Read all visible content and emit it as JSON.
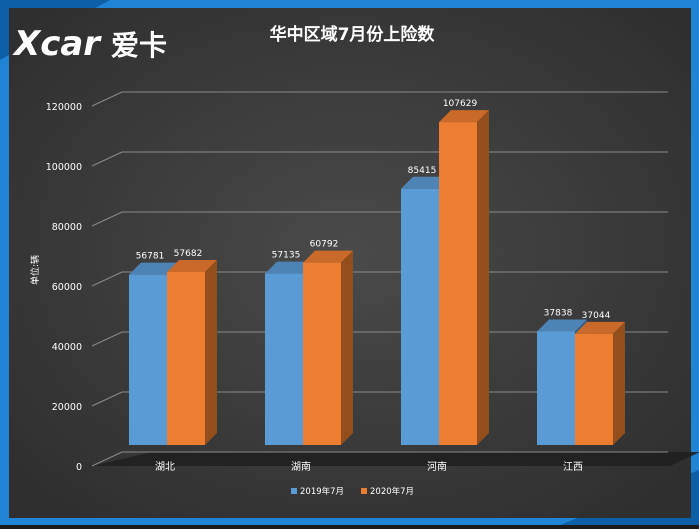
{
  "brand": {
    "logo_text": "Xcar",
    "logo_cn": "爱卡"
  },
  "colors": {
    "accent_blue": "#1f84d6",
    "series_2019": "#5b9bd5",
    "series_2020": "#ed7d31",
    "panel": "#3e3e3e"
  },
  "chart_data": {
    "type": "bar",
    "title": "华中区域7月份上险数",
    "ylabel": "单位:辆",
    "xlabel": "",
    "categories": [
      "湖北",
      "湖南",
      "河南",
      "江西"
    ],
    "series": [
      {
        "name": "2019年7月",
        "values": [
          56781,
          57135,
          85415,
          37838
        ]
      },
      {
        "name": "2020年7月",
        "values": [
          57682,
          60792,
          107629,
          37044
        ]
      }
    ],
    "ylim": [
      0,
      120000
    ],
    "yticks": [
      "0",
      "20000",
      "40000",
      "60000",
      "80000",
      "100000",
      "120000"
    ],
    "data_labels": [
      [
        "56781",
        "57135",
        "85415",
        "37838"
      ],
      [
        "57682",
        "60792",
        "107629",
        "37044"
      ]
    ],
    "grid": true,
    "legend_position": "bottom",
    "style": "3d-clustered-column"
  }
}
